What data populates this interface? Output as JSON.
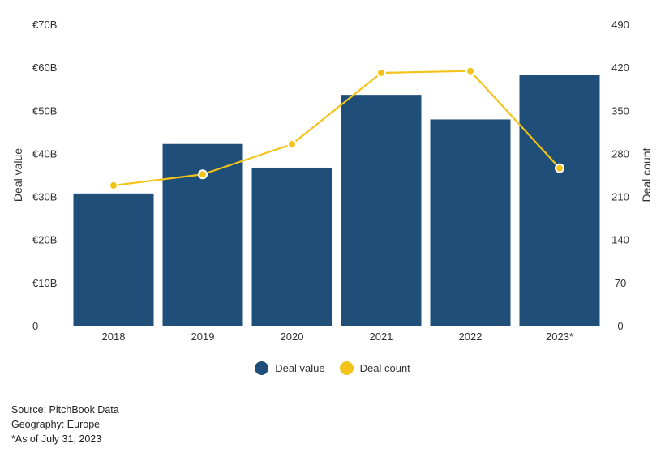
{
  "chart_data": {
    "type": "bar",
    "categories": [
      "2018",
      "2019",
      "2020",
      "2021",
      "2022",
      "2023*"
    ],
    "series": [
      {
        "name": "Deal value",
        "type": "bar",
        "axis": "left",
        "values": [
          30.7,
          42.2,
          36.7,
          53.6,
          47.9,
          58.2
        ]
      },
      {
        "name": "Deal count",
        "type": "line",
        "axis": "right",
        "values": [
          228,
          246,
          295,
          411,
          414,
          256
        ]
      }
    ],
    "y_left": {
      "label": "Deal value",
      "range": [
        0,
        70
      ],
      "ticks": [
        0,
        10,
        20,
        30,
        40,
        50,
        60,
        70
      ],
      "tick_labels": [
        "0",
        "€10B",
        "€20B",
        "€30B",
        "€40B",
        "€50B",
        "€60B",
        "€70B"
      ]
    },
    "y_right": {
      "label": "Deal count",
      "range": [
        0,
        490
      ],
      "ticks": [
        0,
        70,
        140,
        210,
        280,
        350,
        420,
        490
      ],
      "tick_labels": [
        "0",
        "70",
        "140",
        "210",
        "280",
        "350",
        "420",
        "490"
      ]
    },
    "legend_position": "bottom",
    "grid": false,
    "colors": {
      "bar": "#1f4e79",
      "line": "#f2c318"
    },
    "footnotes": [
      "Source: PitchBook Data",
      "Geography: Europe",
      "*As of July 31, 2023"
    ]
  }
}
